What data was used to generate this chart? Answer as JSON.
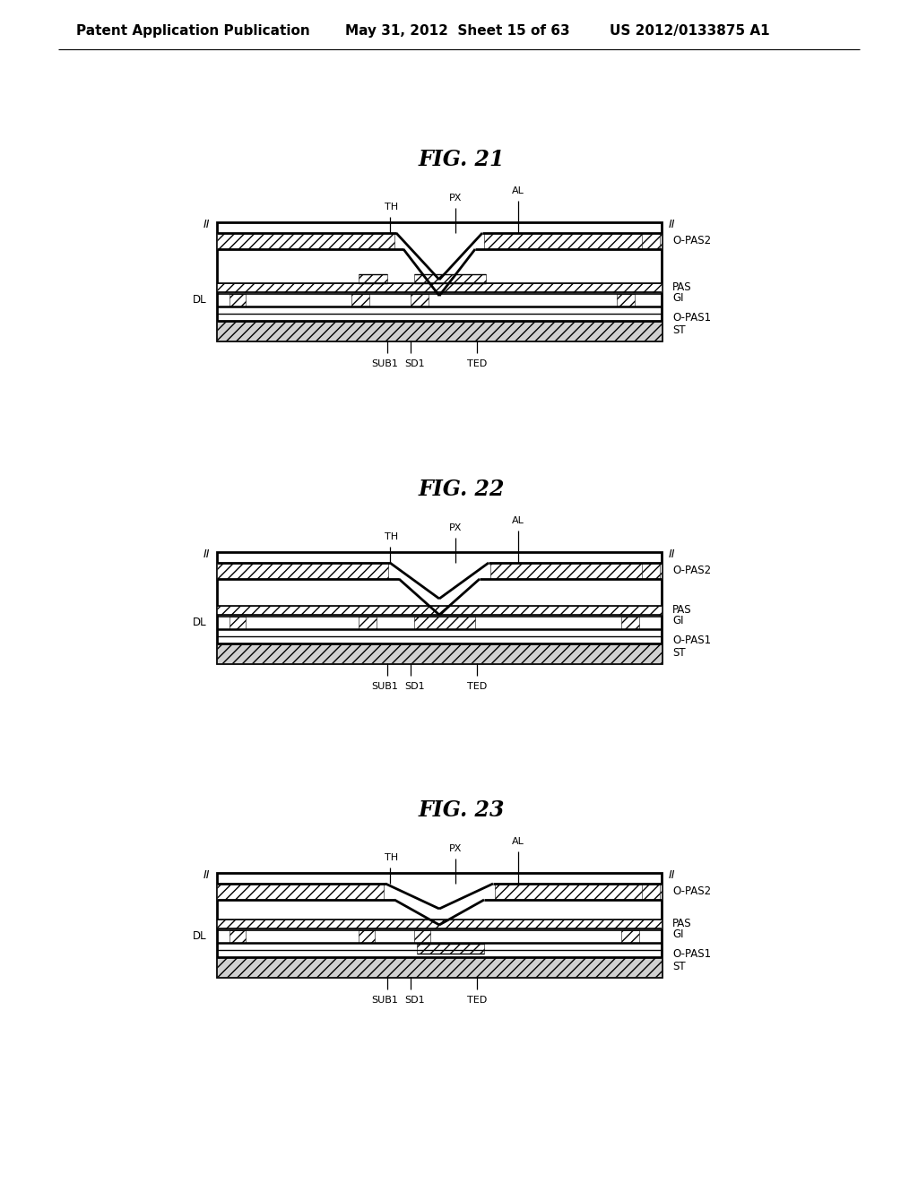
{
  "header_left": "Patent Application Publication",
  "header_mid": "May 31, 2012  Sheet 15 of 63",
  "header_right": "US 2012/0133875 A1",
  "bg_color": "#ffffff",
  "fig_titles": [
    "FIG. 21",
    "FIG. 22",
    "FIG. 23"
  ]
}
